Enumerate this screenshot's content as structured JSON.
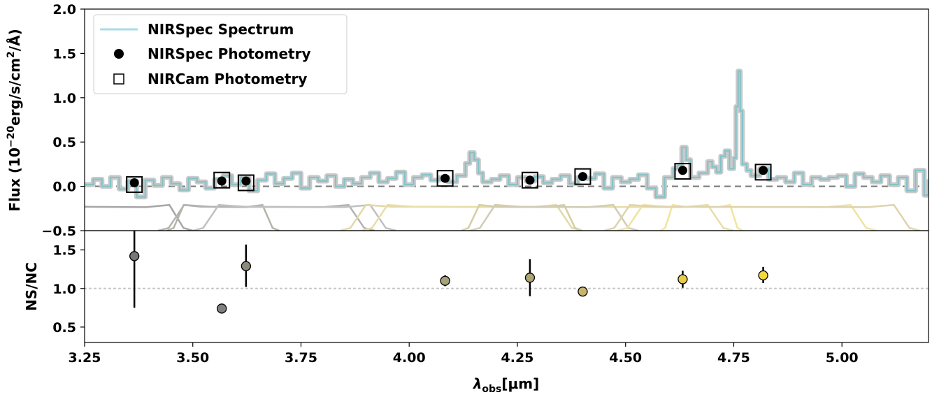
{
  "chart_data": [
    {
      "type": "line",
      "panel": "top",
      "xlim": [
        3.25,
        5.2
      ],
      "ylim": [
        -0.5,
        2.0
      ],
      "ylabel": {
        "main": "Flux (10",
        "sup1": "−20",
        "mid": "erg/s/cm",
        "sup2": "2",
        "tail": "/Å)"
      },
      "yticks": [
        -0.5,
        0.0,
        0.5,
        1.0,
        1.5,
        2.0
      ],
      "ytick_labels": [
        "−0.5",
        "0.0",
        "0.5",
        "1.0",
        "1.5",
        "2.0"
      ],
      "reference_line": {
        "y": 0.0,
        "style": "dashed",
        "color": "#808080"
      },
      "legend": {
        "placement": "top-left",
        "entries": [
          {
            "label": "NIRSpec Spectrum",
            "marker": "line",
            "color": "#a8dde6"
          },
          {
            "label": "NIRSpec Photometry",
            "marker": "filled-circle",
            "color": "#000000"
          },
          {
            "label": "NIRCam Photometry",
            "marker": "open-square",
            "color": "#000000"
          }
        ]
      },
      "spectrum": {
        "color": "#7fc3c9",
        "error_color": "#c9c9c9",
        "x": [
          3.25,
          3.27,
          3.29,
          3.31,
          3.33,
          3.35,
          3.37,
          3.39,
          3.41,
          3.43,
          3.45,
          3.47,
          3.49,
          3.51,
          3.53,
          3.55,
          3.57,
          3.59,
          3.61,
          3.63,
          3.65,
          3.67,
          3.69,
          3.71,
          3.73,
          3.75,
          3.77,
          3.79,
          3.81,
          3.83,
          3.85,
          3.87,
          3.89,
          3.91,
          3.93,
          3.95,
          3.97,
          3.99,
          4.01,
          4.03,
          4.05,
          4.07,
          4.09,
          4.11,
          4.13,
          4.14,
          4.15,
          4.16,
          4.17,
          4.19,
          4.21,
          4.23,
          4.25,
          4.27,
          4.29,
          4.31,
          4.33,
          4.35,
          4.37,
          4.39,
          4.41,
          4.43,
          4.45,
          4.47,
          4.49,
          4.51,
          4.53,
          4.55,
          4.57,
          4.59,
          4.61,
          4.62,
          4.63,
          4.64,
          4.65,
          4.67,
          4.69,
          4.7,
          4.71,
          4.72,
          4.73,
          4.74,
          4.75,
          4.755,
          4.76,
          4.765,
          4.77,
          4.78,
          4.79,
          4.81,
          4.83,
          4.85,
          4.87,
          4.89,
          4.91,
          4.93,
          4.95,
          4.97,
          4.99,
          5.01,
          5.03,
          5.05,
          5.07,
          5.09,
          5.11,
          5.13,
          5.15,
          5.17,
          5.19,
          5.2
        ],
        "y": [
          0.02,
          0.08,
          0.0,
          0.1,
          -0.03,
          0.06,
          -0.12,
          0.07,
          0.01,
          0.1,
          0.03,
          -0.04,
          0.09,
          0.05,
          -0.02,
          0.08,
          0.12,
          0.02,
          0.1,
          -0.05,
          0.07,
          0.14,
          0.03,
          0.09,
          0.15,
          -0.02,
          0.1,
          0.06,
          0.12,
          0.0,
          0.08,
          0.03,
          0.1,
          0.15,
          0.05,
          0.09,
          0.16,
          0.02,
          0.1,
          0.13,
          0.07,
          0.1,
          0.05,
          0.12,
          0.26,
          0.38,
          0.3,
          0.15,
          0.05,
          0.08,
          0.12,
          0.02,
          0.1,
          0.06,
          0.11,
          0.04,
          0.08,
          0.12,
          0.03,
          0.1,
          0.09,
          0.14,
          -0.02,
          0.1,
          0.05,
          0.08,
          0.13,
          -0.02,
          -0.12,
          0.1,
          0.2,
          0.24,
          0.44,
          0.3,
          0.1,
          0.15,
          0.28,
          0.22,
          0.16,
          0.34,
          0.4,
          0.2,
          0.32,
          0.9,
          1.3,
          0.85,
          0.25,
          0.18,
          0.12,
          0.2,
          0.08,
          0.1,
          0.05,
          0.15,
          0.02,
          0.1,
          0.08,
          0.1,
          0.12,
          0.0,
          0.14,
          0.1,
          0.05,
          0.12,
          0.02,
          0.1,
          -0.05,
          0.18,
          -0.1,
          0.08
        ]
      },
      "nirspec_photometry": {
        "x": [
          3.365,
          3.567,
          3.623,
          4.083,
          4.279,
          4.401,
          4.632,
          4.818
        ],
        "y": [
          0.04,
          0.06,
          0.06,
          0.09,
          0.07,
          0.11,
          0.18,
          0.18
        ]
      },
      "nircam_photometry": {
        "x": [
          3.365,
          3.567,
          3.623,
          4.083,
          4.279,
          4.401,
          4.632,
          4.818
        ],
        "y": [
          0.02,
          0.07,
          0.04,
          0.09,
          0.07,
          0.11,
          0.17,
          0.16
        ]
      },
      "filter_curves": [
        {
          "x0": 3.14,
          "x1": 3.5,
          "color": "#a6a6a6"
        },
        {
          "x0": 3.44,
          "x1": 3.7,
          "color": "#b5b3a6"
        },
        {
          "x0": 3.42,
          "x1": 3.92,
          "color": "#b3b3b3"
        },
        {
          "x0": 3.5,
          "x1": 3.97,
          "color": "#c0c0c0"
        },
        {
          "x0": 3.84,
          "x1": 4.4,
          "color": "#e3d9a6"
        },
        {
          "x0": 3.89,
          "x1": 4.75,
          "color": "#e8dea8"
        },
        {
          "x0": 4.12,
          "x1": 4.4,
          "color": "#d6cda3"
        },
        {
          "x0": 4.14,
          "x1": 4.53,
          "color": "#d0ccb5"
        },
        {
          "x0": 4.48,
          "x1": 5.08,
          "color": "#f0e3a0"
        },
        {
          "x0": 4.58,
          "x1": 4.77,
          "color": "#f3e49a"
        },
        {
          "x0": 4.45,
          "x1": 5.18,
          "color": "#ddd3ad"
        }
      ]
    },
    {
      "type": "scatter",
      "panel": "bottom",
      "xlim": [
        3.25,
        5.2
      ],
      "ylim": [
        0.3,
        1.75
      ],
      "xlabel": {
        "lambda": "λ",
        "sub": "obs",
        "unit": "[μm]"
      },
      "ylabel": "NS/NC",
      "xticks": [
        3.25,
        3.5,
        3.75,
        4.0,
        4.25,
        4.5,
        4.75,
        5.0
      ],
      "xtick_labels": [
        "3.25",
        "3.50",
        "3.75",
        "4.00",
        "4.25",
        "4.50",
        "4.75",
        "5.00"
      ],
      "yticks": [
        0.5,
        1.0,
        1.5
      ],
      "ytick_labels": [
        "0.5",
        "1.0",
        "1.5"
      ],
      "reference_line": {
        "y": 1.0,
        "style": "dotted",
        "color": "#c8c8c8"
      },
      "points": [
        {
          "x": 3.365,
          "y": 1.42,
          "err_lo": 0.67,
          "err_hi": 0.33,
          "color": "#777777"
        },
        {
          "x": 3.567,
          "y": 0.74,
          "err_lo": 0.0,
          "err_hi": 0.0,
          "color": "#808080"
        },
        {
          "x": 3.623,
          "y": 1.29,
          "err_lo": 0.27,
          "err_hi": 0.28,
          "color": "#8c8a7a"
        },
        {
          "x": 4.083,
          "y": 1.1,
          "err_lo": 0.07,
          "err_hi": 0.07,
          "color": "#a8a27a"
        },
        {
          "x": 4.279,
          "y": 1.14,
          "err_lo": 0.24,
          "err_hi": 0.24,
          "color": "#aea474"
        },
        {
          "x": 4.401,
          "y": 0.96,
          "err_lo": 0.0,
          "err_hi": 0.0,
          "color": "#c6b56c"
        },
        {
          "x": 4.632,
          "y": 1.12,
          "err_lo": 0.11,
          "err_hi": 0.11,
          "color": "#e5cc4c"
        },
        {
          "x": 4.818,
          "y": 1.17,
          "err_lo": 0.1,
          "err_hi": 0.11,
          "color": "#f3d83c"
        }
      ]
    }
  ]
}
